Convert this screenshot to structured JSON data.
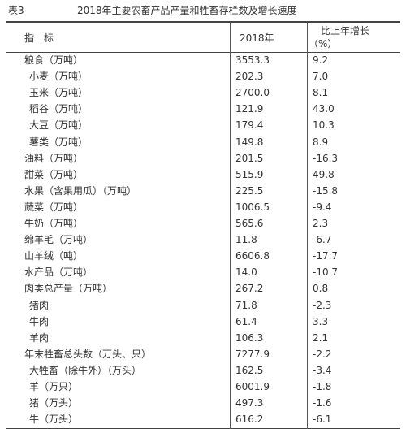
{
  "table_number": "表3",
  "title": "2018年主要农畜产品产量和牲畜存栏数及增长速度",
  "table": {
    "header": [
      "指　标",
      "2018年",
      [
        "比上年增长",
        "（%）"
      ]
    ],
    "rows": [
      [
        "粮食（万吨）",
        "3553.3",
        "9.2"
      ],
      [
        "小麦（万吨）",
        "202.3",
        "7.0"
      ],
      [
        "玉米（万吨）",
        "2700.0",
        "8.1"
      ],
      [
        "稻谷（万吨）",
        "121.9",
        "43.0"
      ],
      [
        "大豆（万吨）",
        "179.4",
        "10.3"
      ],
      [
        "薯类（万吨）",
        "149.8",
        "8.9"
      ],
      [
        "油料（万吨）",
        "201.5",
        "-16.3"
      ],
      [
        "甜菜（万吨）",
        "515.9",
        "49.8"
      ],
      [
        "水果（含果用瓜）（万吨）",
        "225.5",
        "-15.8"
      ],
      [
        "蔬菜（万吨）",
        "1006.5",
        "-9.4"
      ],
      [
        "牛奶（万吨）",
        "565.6",
        "2.3"
      ],
      [
        "绵羊毛（万吨）",
        "11.8",
        "-6.7"
      ],
      [
        "山羊绒（吨）",
        "6606.8",
        "-17.7"
      ],
      [
        "水产品（万吨）",
        "14.0",
        "-10.7"
      ],
      [
        "肉类总产量（万吨）",
        "267.2",
        "0.8"
      ],
      [
        "猪肉",
        "71.8",
        "-2.3"
      ],
      [
        "牛肉",
        "61.4",
        "3.3"
      ],
      [
        "羊肉",
        "106.3",
        "2.1"
      ],
      [
        "年末牲畜总头数（万头、只）",
        "7277.9",
        "-2.2"
      ],
      [
        "大牲畜（除牛外）（万头）",
        "162.5",
        "-3.4"
      ],
      [
        "羊（万只）",
        "6001.9",
        "-1.8"
      ],
      [
        "猪（万头）",
        "497.3",
        "-1.6"
      ],
      [
        "牛（万头）",
        "616.2",
        "-6.1"
      ]
    ]
  }
}
